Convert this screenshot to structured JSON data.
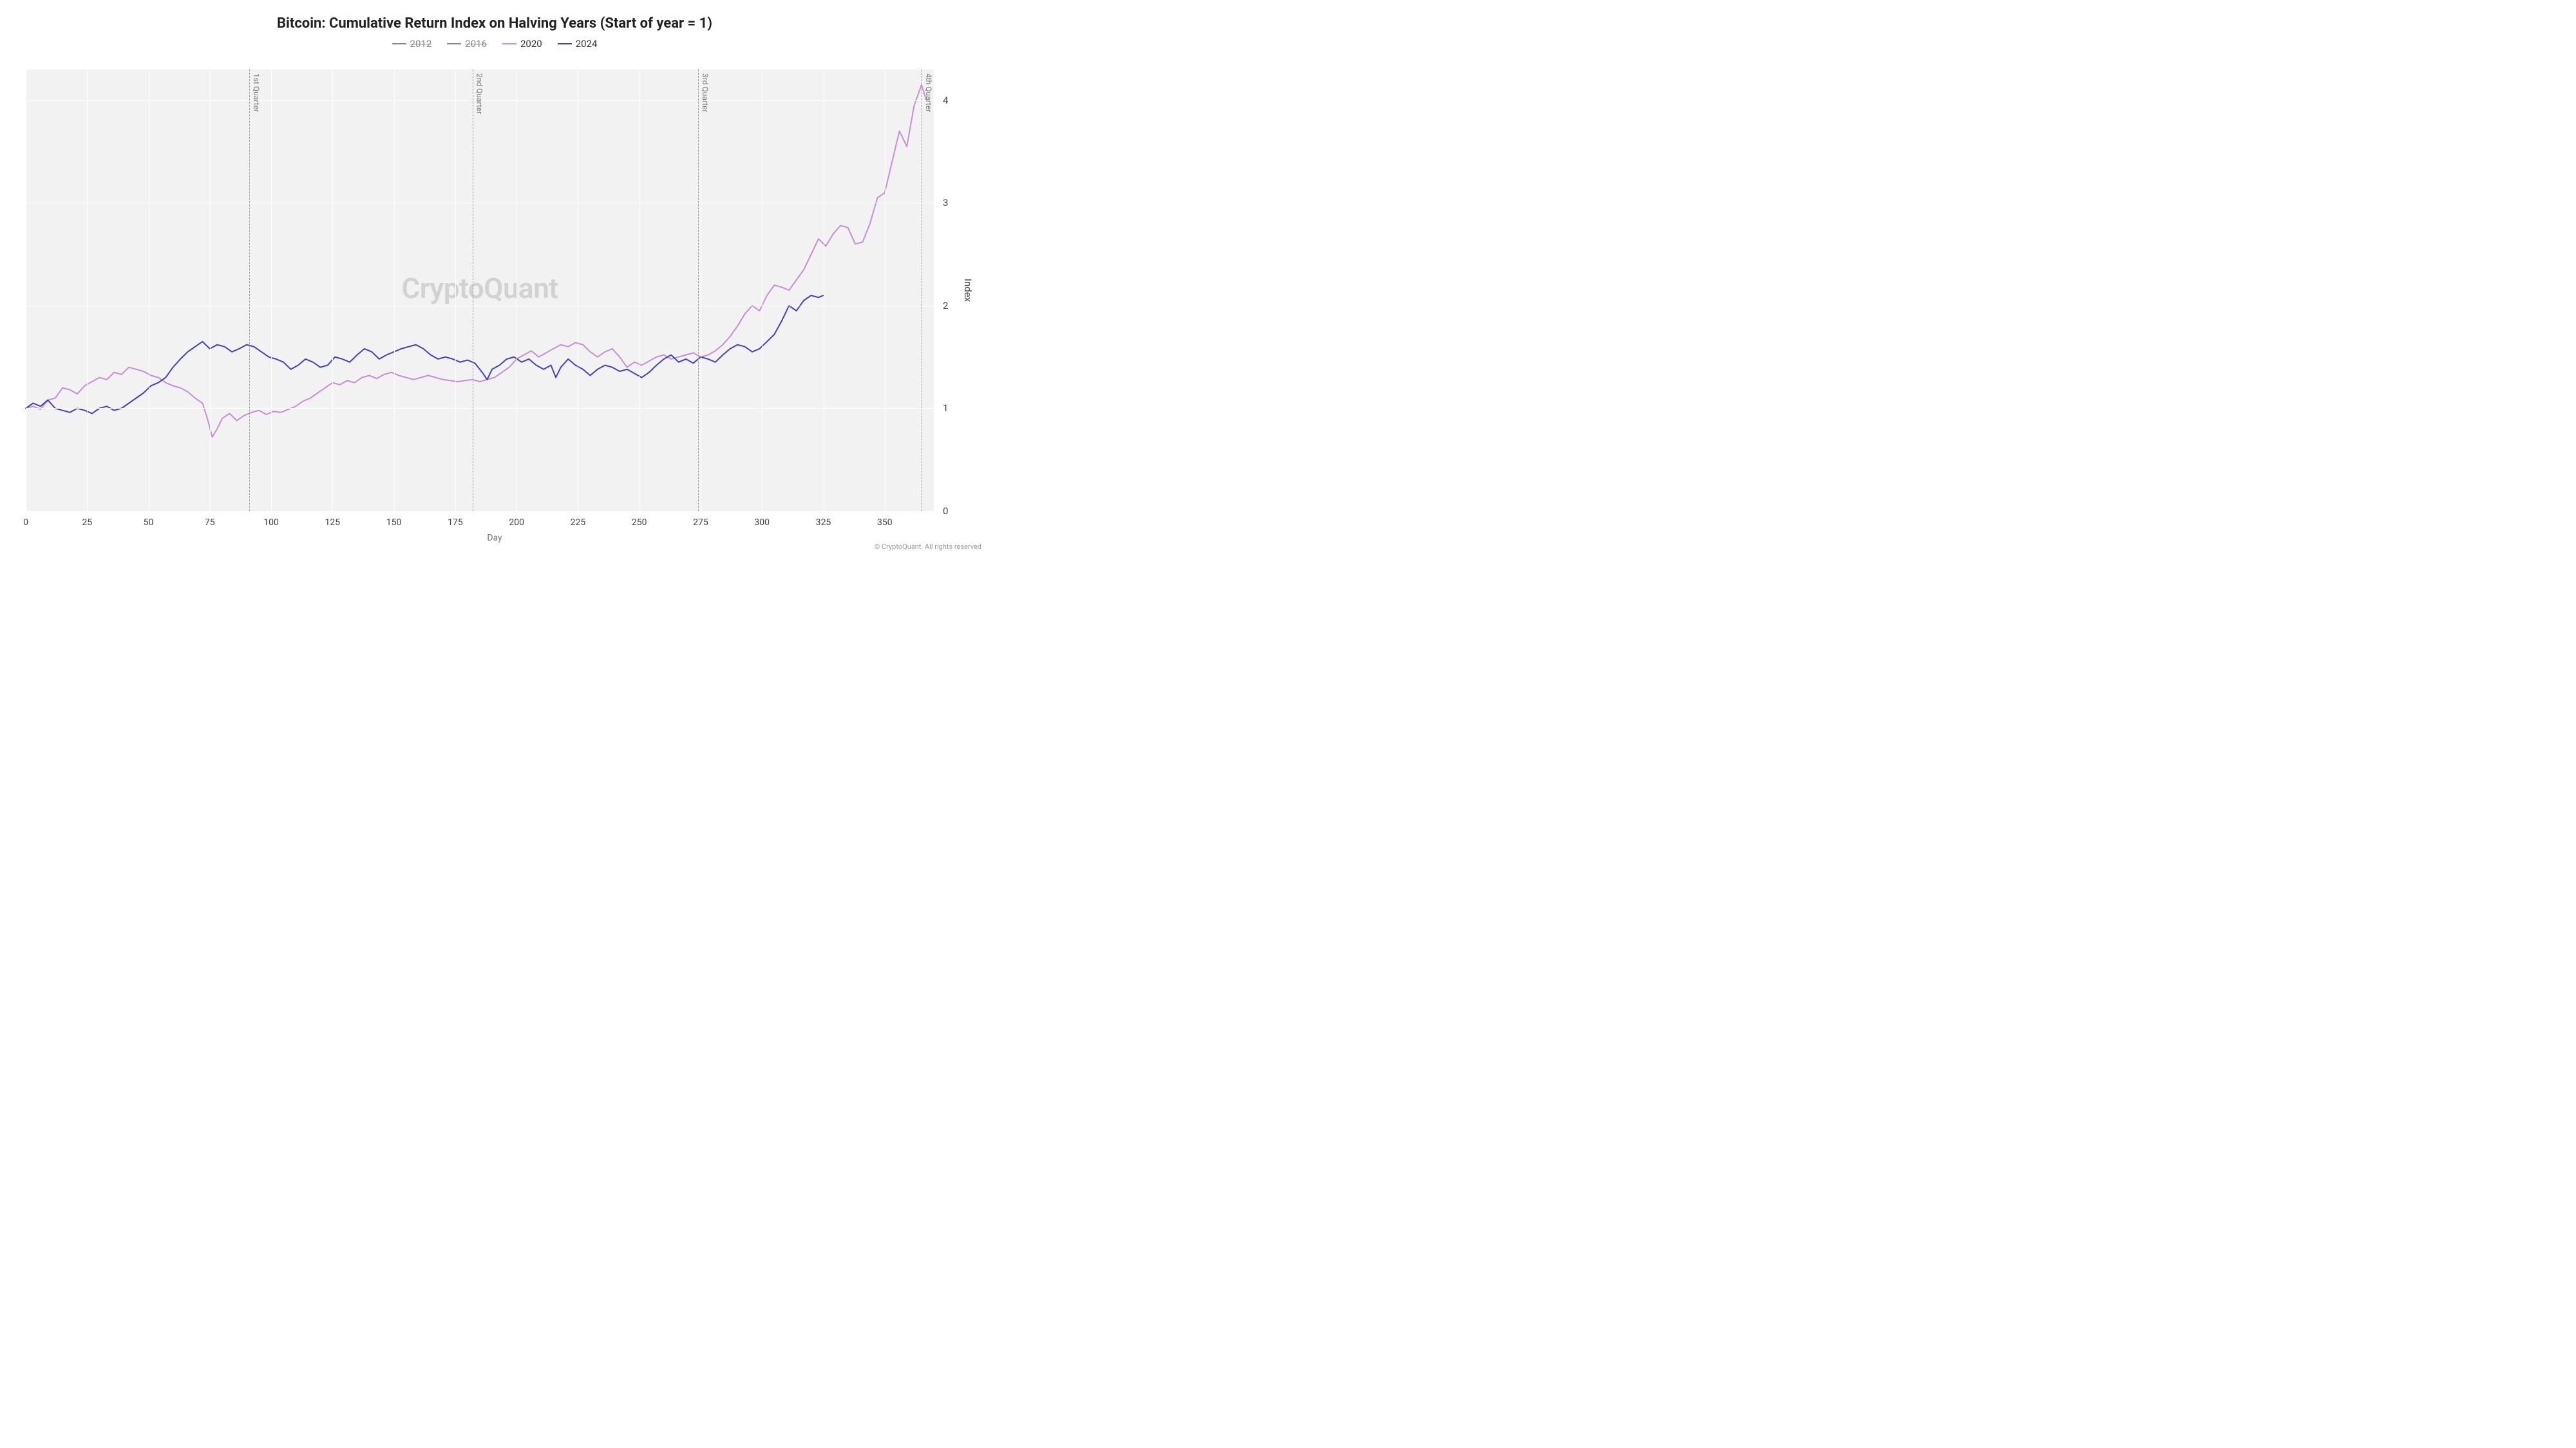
{
  "title": "Bitcoin: Cumulative Return Index on Halving Years (Start of year = 1)",
  "title_fontsize": 22,
  "legend": {
    "items": [
      {
        "label": "2012",
        "color": "#888888",
        "disabled": true
      },
      {
        "label": "2016",
        "color": "#888888",
        "disabled": true
      },
      {
        "label": "2020",
        "color": "#c48ed8",
        "disabled": false
      },
      {
        "label": "2024",
        "color": "#4040c0",
        "disabled": false
      }
    ]
  },
  "watermark": "CryptoQuant",
  "copyright": "© CryptoQuant. All rights reserved",
  "axes": {
    "x": {
      "title": "Day",
      "min": 0,
      "max": 370,
      "ticks": [
        0,
        25,
        50,
        75,
        100,
        125,
        150,
        175,
        200,
        225,
        250,
        275,
        300,
        325,
        350
      ]
    },
    "y": {
      "title": "Index",
      "min": 0,
      "max": 4.3,
      "ticks": [
        0,
        1,
        2,
        3,
        4
      ],
      "side": "right"
    }
  },
  "vlines": [
    {
      "x": 91,
      "label": "1st Quarter"
    },
    {
      "x": 182,
      "label": "2nd Quarter"
    },
    {
      "x": 274,
      "label": "3rd Quarter"
    },
    {
      "x": 365,
      "label": "4th Quarter"
    }
  ],
  "plot": {
    "background_color": "#f2f2f2",
    "grid_color": "#ffffff",
    "line_width": 2
  },
  "series": [
    {
      "name": "2020",
      "color": "#c48ed8",
      "data": [
        [
          0,
          1.0
        ],
        [
          3,
          1.02
        ],
        [
          6,
          0.99
        ],
        [
          9,
          1.08
        ],
        [
          12,
          1.1
        ],
        [
          15,
          1.2
        ],
        [
          18,
          1.18
        ],
        [
          21,
          1.14
        ],
        [
          24,
          1.22
        ],
        [
          27,
          1.26
        ],
        [
          30,
          1.3
        ],
        [
          33,
          1.28
        ],
        [
          36,
          1.35
        ],
        [
          39,
          1.33
        ],
        [
          42,
          1.4
        ],
        [
          45,
          1.38
        ],
        [
          48,
          1.36
        ],
        [
          51,
          1.32
        ],
        [
          54,
          1.3
        ],
        [
          57,
          1.25
        ],
        [
          60,
          1.22
        ],
        [
          63,
          1.2
        ],
        [
          66,
          1.16
        ],
        [
          69,
          1.1
        ],
        [
          72,
          1.05
        ],
        [
          74,
          0.9
        ],
        [
          76,
          0.72
        ],
        [
          78,
          0.8
        ],
        [
          80,
          0.9
        ],
        [
          83,
          0.95
        ],
        [
          86,
          0.88
        ],
        [
          89,
          0.93
        ],
        [
          92,
          0.96
        ],
        [
          95,
          0.98
        ],
        [
          98,
          0.94
        ],
        [
          101,
          0.97
        ],
        [
          104,
          0.96
        ],
        [
          107,
          0.99
        ],
        [
          110,
          1.02
        ],
        [
          113,
          1.07
        ],
        [
          116,
          1.1
        ],
        [
          119,
          1.15
        ],
        [
          122,
          1.2
        ],
        [
          125,
          1.25
        ],
        [
          128,
          1.23
        ],
        [
          131,
          1.27
        ],
        [
          134,
          1.25
        ],
        [
          137,
          1.3
        ],
        [
          140,
          1.32
        ],
        [
          143,
          1.29
        ],
        [
          146,
          1.33
        ],
        [
          149,
          1.35
        ],
        [
          152,
          1.32
        ],
        [
          155,
          1.3
        ],
        [
          158,
          1.28
        ],
        [
          161,
          1.3
        ],
        [
          164,
          1.32
        ],
        [
          167,
          1.3
        ],
        [
          170,
          1.28
        ],
        [
          173,
          1.27
        ],
        [
          176,
          1.26
        ],
        [
          179,
          1.27
        ],
        [
          182,
          1.28
        ],
        [
          185,
          1.26
        ],
        [
          188,
          1.28
        ],
        [
          191,
          1.3
        ],
        [
          194,
          1.35
        ],
        [
          197,
          1.4
        ],
        [
          200,
          1.48
        ],
        [
          203,
          1.52
        ],
        [
          206,
          1.56
        ],
        [
          209,
          1.5
        ],
        [
          212,
          1.54
        ],
        [
          215,
          1.58
        ],
        [
          218,
          1.62
        ],
        [
          221,
          1.6
        ],
        [
          224,
          1.64
        ],
        [
          227,
          1.62
        ],
        [
          230,
          1.55
        ],
        [
          233,
          1.5
        ],
        [
          236,
          1.55
        ],
        [
          239,
          1.58
        ],
        [
          242,
          1.5
        ],
        [
          245,
          1.4
        ],
        [
          248,
          1.45
        ],
        [
          251,
          1.42
        ],
        [
          254,
          1.46
        ],
        [
          257,
          1.5
        ],
        [
          260,
          1.52
        ],
        [
          263,
          1.48
        ],
        [
          266,
          1.5
        ],
        [
          269,
          1.52
        ],
        [
          272,
          1.54
        ],
        [
          275,
          1.5
        ],
        [
          278,
          1.52
        ],
        [
          281,
          1.56
        ],
        [
          284,
          1.62
        ],
        [
          287,
          1.7
        ],
        [
          290,
          1.8
        ],
        [
          293,
          1.92
        ],
        [
          296,
          2.0
        ],
        [
          299,
          1.95
        ],
        [
          302,
          2.1
        ],
        [
          305,
          2.2
        ],
        [
          308,
          2.18
        ],
        [
          311,
          2.15
        ],
        [
          314,
          2.25
        ],
        [
          317,
          2.35
        ],
        [
          320,
          2.5
        ],
        [
          323,
          2.65
        ],
        [
          326,
          2.58
        ],
        [
          329,
          2.7
        ],
        [
          332,
          2.78
        ],
        [
          335,
          2.76
        ],
        [
          338,
          2.6
        ],
        [
          341,
          2.62
        ],
        [
          344,
          2.8
        ],
        [
          347,
          3.05
        ],
        [
          350,
          3.1
        ],
        [
          353,
          3.4
        ],
        [
          356,
          3.7
        ],
        [
          359,
          3.55
        ],
        [
          362,
          3.95
        ],
        [
          365,
          4.15
        ],
        [
          367,
          4.0
        ]
      ]
    },
    {
      "name": "2024",
      "color": "#4040c0",
      "data": [
        [
          0,
          1.0
        ],
        [
          3,
          1.05
        ],
        [
          6,
          1.02
        ],
        [
          9,
          1.08
        ],
        [
          12,
          1.0
        ],
        [
          15,
          0.98
        ],
        [
          18,
          0.96
        ],
        [
          21,
          1.0
        ],
        [
          24,
          0.98
        ],
        [
          27,
          0.95
        ],
        [
          30,
          1.0
        ],
        [
          33,
          1.02
        ],
        [
          36,
          0.98
        ],
        [
          39,
          1.0
        ],
        [
          42,
          1.05
        ],
        [
          45,
          1.1
        ],
        [
          48,
          1.15
        ],
        [
          51,
          1.22
        ],
        [
          54,
          1.25
        ],
        [
          57,
          1.3
        ],
        [
          60,
          1.4
        ],
        [
          63,
          1.48
        ],
        [
          66,
          1.55
        ],
        [
          69,
          1.6
        ],
        [
          72,
          1.65
        ],
        [
          75,
          1.58
        ],
        [
          78,
          1.62
        ],
        [
          81,
          1.6
        ],
        [
          84,
          1.55
        ],
        [
          87,
          1.58
        ],
        [
          90,
          1.62
        ],
        [
          93,
          1.6
        ],
        [
          96,
          1.55
        ],
        [
          99,
          1.5
        ],
        [
          102,
          1.48
        ],
        [
          105,
          1.45
        ],
        [
          108,
          1.38
        ],
        [
          111,
          1.42
        ],
        [
          114,
          1.48
        ],
        [
          117,
          1.45
        ],
        [
          120,
          1.4
        ],
        [
          123,
          1.42
        ],
        [
          126,
          1.5
        ],
        [
          129,
          1.48
        ],
        [
          132,
          1.45
        ],
        [
          135,
          1.52
        ],
        [
          138,
          1.58
        ],
        [
          141,
          1.55
        ],
        [
          144,
          1.48
        ],
        [
          147,
          1.52
        ],
        [
          150,
          1.55
        ],
        [
          153,
          1.58
        ],
        [
          156,
          1.6
        ],
        [
          159,
          1.62
        ],
        [
          162,
          1.58
        ],
        [
          165,
          1.52
        ],
        [
          168,
          1.48
        ],
        [
          171,
          1.5
        ],
        [
          174,
          1.48
        ],
        [
          177,
          1.45
        ],
        [
          180,
          1.47
        ],
        [
          183,
          1.44
        ],
        [
          186,
          1.35
        ],
        [
          188,
          1.28
        ],
        [
          190,
          1.38
        ],
        [
          193,
          1.42
        ],
        [
          196,
          1.48
        ],
        [
          199,
          1.5
        ],
        [
          202,
          1.45
        ],
        [
          205,
          1.48
        ],
        [
          208,
          1.42
        ],
        [
          211,
          1.38
        ],
        [
          214,
          1.42
        ],
        [
          216,
          1.3
        ],
        [
          218,
          1.4
        ],
        [
          221,
          1.48
        ],
        [
          224,
          1.42
        ],
        [
          227,
          1.38
        ],
        [
          230,
          1.32
        ],
        [
          233,
          1.38
        ],
        [
          236,
          1.42
        ],
        [
          239,
          1.4
        ],
        [
          242,
          1.36
        ],
        [
          245,
          1.38
        ],
        [
          248,
          1.34
        ],
        [
          251,
          1.3
        ],
        [
          254,
          1.35
        ],
        [
          257,
          1.42
        ],
        [
          260,
          1.48
        ],
        [
          263,
          1.52
        ],
        [
          266,
          1.45
        ],
        [
          269,
          1.48
        ],
        [
          272,
          1.44
        ],
        [
          275,
          1.5
        ],
        [
          278,
          1.48
        ],
        [
          281,
          1.45
        ],
        [
          284,
          1.52
        ],
        [
          287,
          1.58
        ],
        [
          290,
          1.62
        ],
        [
          293,
          1.6
        ],
        [
          296,
          1.55
        ],
        [
          299,
          1.58
        ],
        [
          302,
          1.65
        ],
        [
          305,
          1.72
        ],
        [
          308,
          1.85
        ],
        [
          311,
          2.0
        ],
        [
          314,
          1.95
        ],
        [
          317,
          2.05
        ],
        [
          320,
          2.1
        ],
        [
          323,
          2.08
        ],
        [
          325,
          2.1
        ]
      ]
    }
  ]
}
